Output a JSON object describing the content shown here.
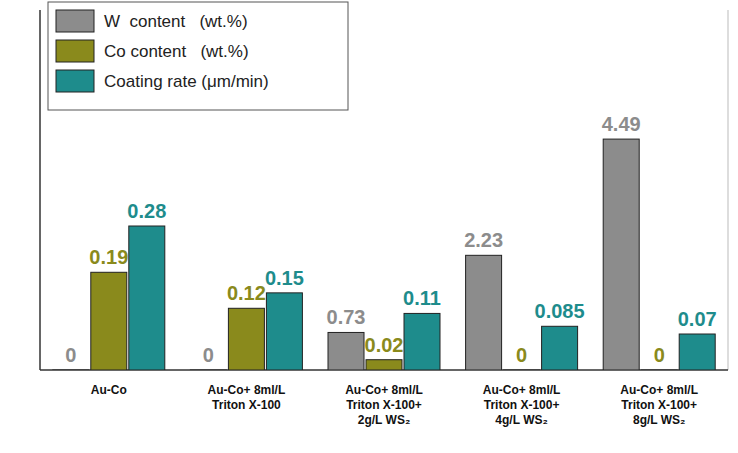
{
  "chart_data": {
    "type": "bar",
    "categories": [
      "Au-Co",
      "Au-Co+ 8ml/L\nTriton X-100",
      "Au-Co+ 8ml/L\nTriton X-100+\n2g/L WS₂",
      "Au-Co+ 8ml/L\nTriton X-100+\n4g/L WS₂",
      "Au-Co+ 8ml/L\nTriton X-100+\n8g/L WS₂"
    ],
    "series": [
      {
        "name": "W  content   (wt.%)",
        "color": "#8c8c8c",
        "axis": "y2",
        "values": [
          0,
          0,
          0.73,
          2.23,
          4.49
        ]
      },
      {
        "name": "Co content   (wt.%)",
        "color": "#8a8a1c",
        "values": [
          0.19,
          0.12,
          0.02,
          0,
          0
        ]
      },
      {
        "name": "Coating rate (μm/min)",
        "color": "#1e8c8c",
        "values": [
          0.28,
          0.15,
          0.11,
          0.085,
          0.07
        ]
      }
    ],
    "ylim": [
      0,
      0.7
    ],
    "y2lim": [
      0,
      7
    ],
    "data_labels": true,
    "tick_labels": "x",
    "legend": "upper left"
  }
}
